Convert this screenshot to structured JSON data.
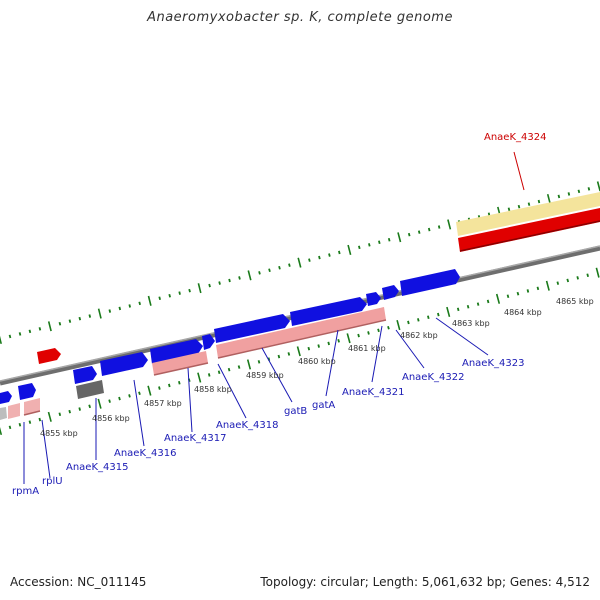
{
  "title": "Anaeromyxobacter sp. K, complete genome",
  "footer": {
    "accession": "Accession: NC_011145",
    "summary": "Topology: circular; Length: 5,061,632 bp; Genes: 4,512"
  },
  "colors": {
    "cds_forward": "#1010e0",
    "cds_reverse": "#e00000",
    "rna_light": "#f0b0b0",
    "highlight": "#f4e49c",
    "backbone": "#8a8a8a",
    "ticks": "#1a7a1a",
    "label_blue": "#1a1ab4",
    "label_red": "#cc0000"
  },
  "scale_labels": [
    "4855 kbp",
    "4856 kbp",
    "4857 kbp",
    "4858 kbp",
    "4859 kbp",
    "4860 kbp",
    "4861 kbp",
    "4862 kbp",
    "4863 kbp",
    "4864 kbp",
    "4865 kbp"
  ],
  "gene_labels": [
    {
      "text": "rpmA"
    },
    {
      "text": "rplU"
    },
    {
      "text": "AnaeK_4315"
    },
    {
      "text": "AnaeK_4316"
    },
    {
      "text": "AnaeK_4317"
    },
    {
      "text": "AnaeK_4318"
    },
    {
      "text": "gatB"
    },
    {
      "text": "gatA"
    },
    {
      "text": "AnaeK_4321"
    },
    {
      "text": "AnaeK_4322"
    },
    {
      "text": "AnaeK_4323"
    },
    {
      "text": "AnaeK_4324",
      "color": "red"
    }
  ]
}
